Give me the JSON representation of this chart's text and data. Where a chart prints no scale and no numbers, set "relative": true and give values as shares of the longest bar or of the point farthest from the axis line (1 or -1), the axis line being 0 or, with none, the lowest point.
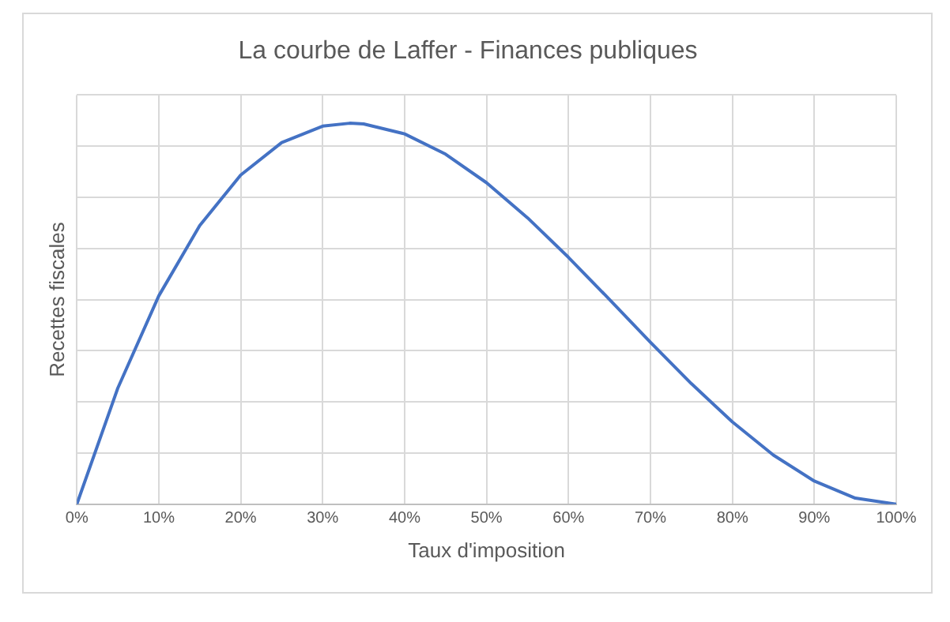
{
  "chart_data": {
    "type": "line",
    "title": "La courbe de Laffer - Finances publiques",
    "xlabel": "Taux d'imposition",
    "ylabel": "Recettes fiscales",
    "relative": true,
    "x": [
      0,
      5,
      10,
      15,
      20,
      25,
      30,
      33.3,
      35,
      40,
      45,
      50,
      55,
      60,
      65,
      70,
      75,
      80,
      85,
      90,
      95,
      100
    ],
    "series": [
      {
        "color": "#4472c4",
        "values": [
          0,
          0.3046,
          0.5468,
          0.7315,
          0.864,
          0.9492,
          0.9923,
          1,
          0.9982,
          0.972,
          0.9188,
          0.8438,
          0.7518,
          0.648,
          0.5375,
          0.4253,
          0.3164,
          0.216,
          0.1291,
          0.0608,
          0.016,
          0
        ]
      }
    ],
    "xlim": [
      0,
      100
    ],
    "xticks": [
      {
        "value": 0,
        "label": "0%"
      },
      {
        "value": 10,
        "label": "10%"
      },
      {
        "value": 20,
        "label": "20%"
      },
      {
        "value": 30,
        "label": "30%"
      },
      {
        "value": 40,
        "label": "40%"
      },
      {
        "value": 50,
        "label": "50%"
      },
      {
        "value": 60,
        "label": "60%"
      },
      {
        "value": 70,
        "label": "70%"
      },
      {
        "value": 80,
        "label": "80%"
      },
      {
        "value": 90,
        "label": "90%"
      },
      {
        "value": 100,
        "label": "100%"
      }
    ],
    "grid": true,
    "legend": false,
    "marker": "none",
    "line_style": "solid"
  }
}
